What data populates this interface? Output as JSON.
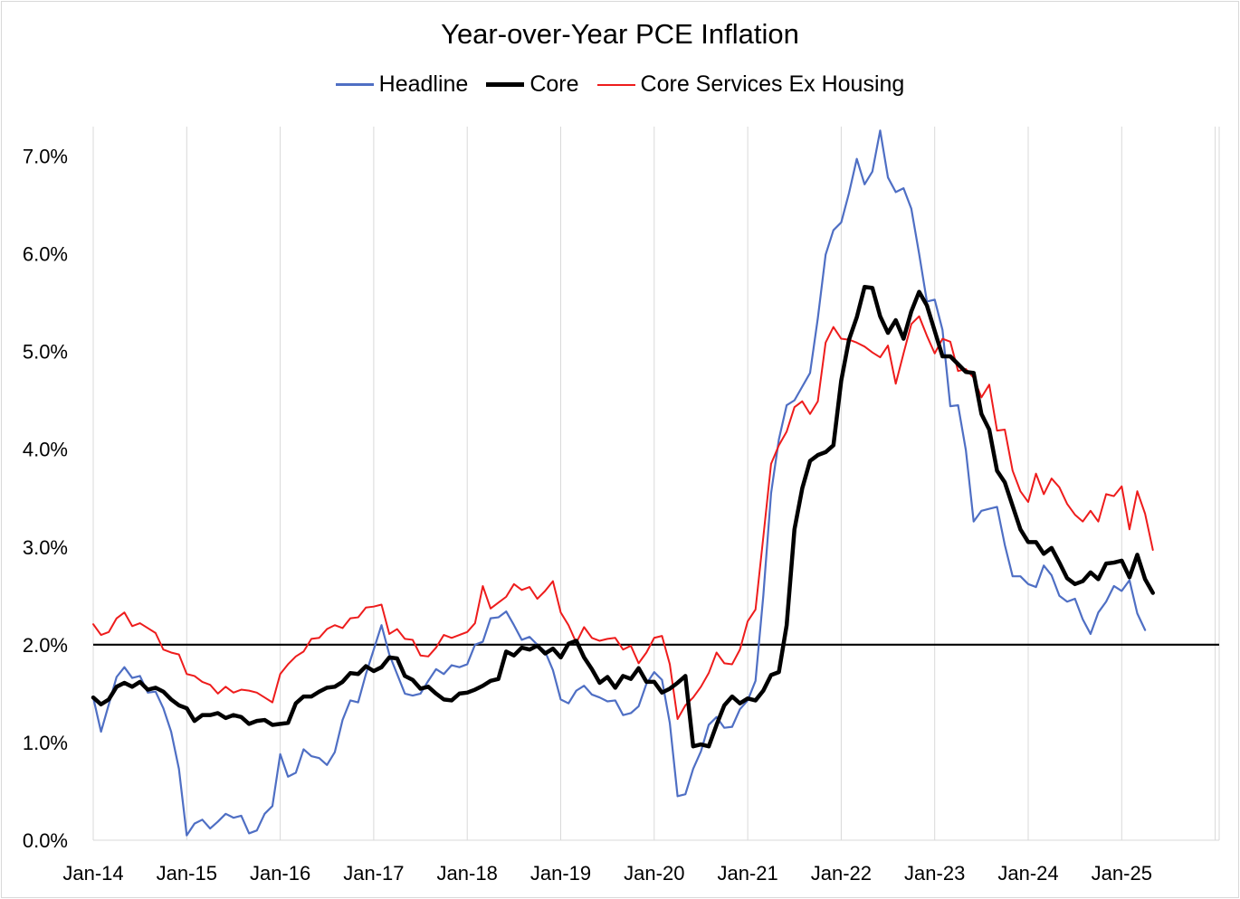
{
  "chart_data": {
    "type": "line",
    "title": "Year-over-Year PCE Inflation",
    "xlabel": "",
    "ylabel": "",
    "ylim": [
      0,
      0.073
    ],
    "yticks": [
      0,
      0.01,
      0.02,
      0.03,
      0.04,
      0.05,
      0.06,
      0.07
    ],
    "ytick_labels": [
      "0.0%",
      "1.0%",
      "2.0%",
      "3.0%",
      "4.0%",
      "5.0%",
      "6.0%",
      "7.0%"
    ],
    "x_start": "Jan-14",
    "xtick_labels": [
      "Jan-14",
      "Jan-15",
      "Jan-16",
      "Jan-17",
      "Jan-18",
      "Jan-19",
      "Jan-20",
      "Jan-21",
      "Jan-22",
      "Jan-23",
      "Jan-24",
      "Jan-25"
    ],
    "grid": "vertical",
    "legend_position": "top",
    "reference_line": 0.02,
    "series": [
      {
        "name": "Headline",
        "color": "#4f6fc4",
        "values": [
          0.0146,
          0.0111,
          0.0139,
          0.0167,
          0.0177,
          0.0166,
          0.0168,
          0.0151,
          0.0152,
          0.0135,
          0.0111,
          0.0073,
          0.0005,
          0.0017,
          0.0021,
          0.0012,
          0.0019,
          0.0027,
          0.0023,
          0.0025,
          0.0007,
          0.001,
          0.0027,
          0.0035,
          0.0088,
          0.0065,
          0.0069,
          0.0093,
          0.0086,
          0.0084,
          0.0077,
          0.009,
          0.0123,
          0.0143,
          0.0141,
          0.017,
          0.0195,
          0.022,
          0.019,
          0.017,
          0.015,
          0.0148,
          0.015,
          0.0163,
          0.0175,
          0.017,
          0.0179,
          0.0177,
          0.018,
          0.02,
          0.0203,
          0.0227,
          0.0228,
          0.0234,
          0.022,
          0.0205,
          0.0208,
          0.02,
          0.0193,
          0.0174,
          0.0144,
          0.014,
          0.0153,
          0.0158,
          0.0149,
          0.0146,
          0.0142,
          0.0143,
          0.0128,
          0.013,
          0.0137,
          0.016,
          0.0172,
          0.0164,
          0.012,
          0.0045,
          0.0047,
          0.0073,
          0.0091,
          0.0118,
          0.0126,
          0.0115,
          0.0116,
          0.0134,
          0.0143,
          0.0163,
          0.025,
          0.0355,
          0.041,
          0.0445,
          0.045,
          0.0464,
          0.0478,
          0.0534,
          0.0599,
          0.0624,
          0.0632,
          0.0662,
          0.0697,
          0.0671,
          0.0684,
          0.0726,
          0.0678,
          0.0663,
          0.0667,
          0.0646,
          0.06,
          0.0551,
          0.0553,
          0.0522,
          0.0444,
          0.0445,
          0.0399,
          0.0326,
          0.0337,
          0.0339,
          0.0341,
          0.0302,
          0.027,
          0.027,
          0.0262,
          0.0259,
          0.0281,
          0.0271,
          0.025,
          0.0244,
          0.0247,
          0.0226,
          0.0211,
          0.0233,
          0.0244,
          0.026,
          0.0255,
          0.0266,
          0.0232,
          0.0215
        ]
      },
      {
        "name": "Core",
        "color": "#000000",
        "values": [
          0.0146,
          0.0139,
          0.0144,
          0.0157,
          0.0161,
          0.0157,
          0.0162,
          0.0154,
          0.0156,
          0.0152,
          0.0144,
          0.0138,
          0.0135,
          0.0122,
          0.0128,
          0.0128,
          0.013,
          0.0125,
          0.0128,
          0.0126,
          0.0119,
          0.0122,
          0.0123,
          0.0118,
          0.0119,
          0.012,
          0.014,
          0.0147,
          0.0147,
          0.0152,
          0.0156,
          0.0157,
          0.0162,
          0.0171,
          0.017,
          0.0178,
          0.0173,
          0.0177,
          0.0187,
          0.0186,
          0.0168,
          0.0164,
          0.0155,
          0.0157,
          0.015,
          0.0144,
          0.0143,
          0.015,
          0.0151,
          0.0154,
          0.0158,
          0.0163,
          0.0165,
          0.0193,
          0.0189,
          0.0197,
          0.0195,
          0.0199,
          0.0191,
          0.0196,
          0.0187,
          0.0201,
          0.0204,
          0.0187,
          0.0175,
          0.0161,
          0.0167,
          0.0156,
          0.0168,
          0.0165,
          0.0176,
          0.0162,
          0.0162,
          0.0151,
          0.0155,
          0.0161,
          0.0168,
          0.0096,
          0.0098,
          0.0096,
          0.0118,
          0.0138,
          0.0147,
          0.014,
          0.0145,
          0.0143,
          0.0153,
          0.0169,
          0.0172,
          0.022,
          0.0318,
          0.036,
          0.0388,
          0.0394,
          0.0397,
          0.0404,
          0.047,
          0.0512,
          0.0535,
          0.0566,
          0.0565,
          0.0536,
          0.0519,
          0.0532,
          0.0513,
          0.0541,
          0.0561,
          0.0547,
          0.0521,
          0.0495,
          0.0495,
          0.0487,
          0.0479,
          0.0478,
          0.0436,
          0.042,
          0.0378,
          0.0366,
          0.0342,
          0.0318,
          0.0305,
          0.0305,
          0.0293,
          0.0299,
          0.0284,
          0.0268,
          0.0262,
          0.0265,
          0.0274,
          0.0267,
          0.0283,
          0.0284,
          0.0286,
          0.0269,
          0.0292,
          0.0267,
          0.0253
        ]
      },
      {
        "name": "Core Services Ex Housing",
        "color": "#ee1c1c",
        "values": [
          0.0221,
          0.021,
          0.0213,
          0.0227,
          0.0233,
          0.0219,
          0.0222,
          0.0217,
          0.0212,
          0.0195,
          0.0192,
          0.019,
          0.017,
          0.0168,
          0.0162,
          0.0159,
          0.015,
          0.0157,
          0.0151,
          0.0154,
          0.0153,
          0.0151,
          0.0146,
          0.0141,
          0.017,
          0.018,
          0.0188,
          0.0193,
          0.0206,
          0.0207,
          0.0216,
          0.022,
          0.0217,
          0.0227,
          0.0228,
          0.0238,
          0.0239,
          0.0241,
          0.0211,
          0.0216,
          0.0206,
          0.0205,
          0.0189,
          0.0188,
          0.0197,
          0.021,
          0.0207,
          0.021,
          0.0213,
          0.0222,
          0.026,
          0.0237,
          0.0243,
          0.0249,
          0.0262,
          0.0256,
          0.0259,
          0.0247,
          0.0255,
          0.0265,
          0.0233,
          0.022,
          0.0202,
          0.0218,
          0.0207,
          0.0204,
          0.0206,
          0.0207,
          0.0195,
          0.0199,
          0.0181,
          0.0192,
          0.0207,
          0.0209,
          0.018,
          0.0124,
          0.0138,
          0.0146,
          0.0157,
          0.0171,
          0.0192,
          0.0181,
          0.018,
          0.0195,
          0.0224,
          0.0236,
          0.031,
          0.0385,
          0.0404,
          0.0418,
          0.0443,
          0.0449,
          0.0436,
          0.0449,
          0.0509,
          0.0525,
          0.0513,
          0.0512,
          0.0509,
          0.0505,
          0.0499,
          0.0494,
          0.0506,
          0.0467,
          0.0498,
          0.0528,
          0.0536,
          0.0516,
          0.0498,
          0.0513,
          0.051,
          0.048,
          0.0482,
          0.0473,
          0.0453,
          0.0466,
          0.0419,
          0.042,
          0.0378,
          0.0357,
          0.0346,
          0.0375,
          0.0354,
          0.037,
          0.0361,
          0.0344,
          0.0333,
          0.0326,
          0.0337,
          0.0326,
          0.0354,
          0.0352,
          0.0362,
          0.0318,
          0.0357,
          0.0334,
          0.0297
        ]
      }
    ]
  }
}
